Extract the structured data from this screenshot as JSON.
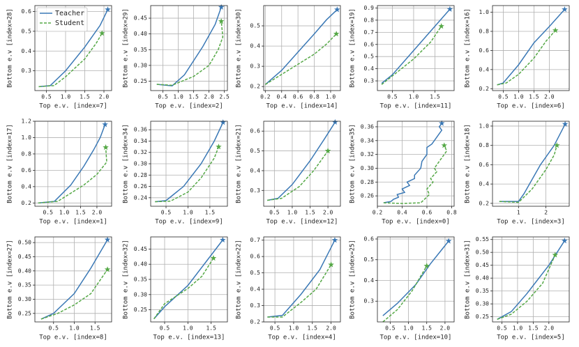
{
  "chart_data": [
    {
      "type": "line",
      "xlabel": "Top e.v. [index=7]",
      "ylabel": "Bottom e.v [index=28]",
      "xlim": [
        0.2,
        2.2
      ],
      "ylim": [
        0.2,
        0.63
      ],
      "xticks": [
        0.5,
        {
          "value": 1,
          "label": "1.0"
        },
        1.5,
        {
          "value": 2,
          "label": "2.0"
        }
      ],
      "yticks": [
        0.3,
        0.4,
        0.5,
        0.6
      ],
      "grid": true,
      "legend": "upper left",
      "end_marker": "star",
      "series": [
        {
          "name": "Teacher",
          "color": "#3a78b5",
          "x": [
            0.3,
            0.6,
            1.0,
            1.5,
            1.9,
            2.1
          ],
          "values": [
            0.22,
            0.225,
            0.3,
            0.42,
            0.53,
            0.61
          ]
        },
        {
          "name": "Student",
          "color": "#55a846",
          "x": [
            0.3,
            0.7,
            1.0,
            1.5,
            1.8,
            1.95
          ],
          "values": [
            0.22,
            0.225,
            0.27,
            0.36,
            0.44,
            0.49
          ]
        }
      ]
    },
    {
      "type": "line",
      "xlabel": "Top e.v. [index=2]",
      "ylabel": "Bottom e.v [index=29]",
      "xlim": [
        0.1,
        2.6
      ],
      "ylim": [
        0.22,
        0.49
      ],
      "xticks": [
        0.5,
        {
          "value": 1,
          "label": "1.0"
        },
        1.5,
        {
          "value": 2,
          "label": "2.0"
        },
        2.5
      ],
      "yticks": [
        0.25,
        {
          "value": 0.3,
          "label": "0.30"
        },
        0.35,
        {
          "value": 0.4,
          "label": "0.40"
        },
        0.45
      ],
      "grid": true,
      "end_marker": "star",
      "series": [
        {
          "color": "#3a78b5",
          "x": [
            0.3,
            0.8,
            1.2,
            1.8,
            2.2,
            2.4
          ],
          "values": [
            0.24,
            0.235,
            0.27,
            0.36,
            0.43,
            0.485
          ]
        },
        {
          "color": "#55a846",
          "x": [
            0.3,
            0.8,
            1.5,
            2.0,
            2.3,
            2.45,
            2.4
          ],
          "values": [
            0.24,
            0.237,
            0.265,
            0.3,
            0.35,
            0.39,
            0.44
          ]
        }
      ]
    },
    {
      "type": "line",
      "xlabel": "Top e.v. [index=14]",
      "ylabel": "Bottom e.v [index=30]",
      "xlim": [
        0.18,
        1.12
      ],
      "ylim": [
        0.18,
        0.6
      ],
      "xticks": [
        0.2,
        0.4,
        0.6,
        0.8,
        {
          "value": 1,
          "label": "1.0"
        }
      ],
      "yticks": [
        0.2,
        0.3,
        0.4,
        0.5
      ],
      "grid": true,
      "end_marker": "star",
      "series": [
        {
          "color": "#3a78b5",
          "x": [
            0.2,
            0.4,
            0.6,
            0.8,
            0.95,
            1.08
          ],
          "values": [
            0.21,
            0.28,
            0.37,
            0.46,
            0.53,
            0.58
          ]
        },
        {
          "color": "#55a846",
          "x": [
            0.2,
            0.4,
            0.6,
            0.8,
            0.95,
            1.07
          ],
          "values": [
            0.21,
            0.26,
            0.31,
            0.36,
            0.41,
            0.46
          ]
        }
      ]
    },
    {
      "type": "line",
      "xlabel": "Top e.v. [index=11]",
      "ylabel": "Bottom e.v [index=19]",
      "xlim": [
        0.15,
        1.95
      ],
      "ylim": [
        0.22,
        0.92
      ],
      "xticks": [
        0.5,
        {
          "value": 1,
          "label": "1.0"
        },
        1.5
      ],
      "yticks": [
        0.3,
        0.4,
        0.5,
        0.6,
        0.7,
        0.8,
        0.9
      ],
      "grid": true,
      "end_marker": "star",
      "series": [
        {
          "color": "#3a78b5",
          "x": [
            0.25,
            0.5,
            1.0,
            1.5,
            1.85
          ],
          "values": [
            0.28,
            0.35,
            0.55,
            0.75,
            0.89
          ]
        },
        {
          "color": "#55a846",
          "x": [
            0.25,
            0.5,
            1.0,
            1.4,
            1.65
          ],
          "values": [
            0.27,
            0.34,
            0.48,
            0.62,
            0.75
          ]
        }
      ]
    },
    {
      "type": "line",
      "xlabel": "Top e.v. [index=6]",
      "ylabel": "Bottom e.v [index=16]",
      "xlim": [
        0.15,
        2.65
      ],
      "ylim": [
        0.18,
        1.07
      ],
      "xticks": [
        0.5,
        {
          "value": 1,
          "label": "1.0"
        },
        1.5,
        {
          "value": 2,
          "label": "2.0"
        }
      ],
      "yticks": [
        0.2,
        0.4,
        0.6,
        0.8,
        {
          "value": 1,
          "label": "1.0"
        }
      ],
      "grid": true,
      "end_marker": "star",
      "series": [
        {
          "color": "#3a78b5",
          "x": [
            0.3,
            0.5,
            1.0,
            1.5,
            2.0,
            2.5
          ],
          "values": [
            0.24,
            0.26,
            0.45,
            0.68,
            0.85,
            1.03
          ]
        },
        {
          "color": "#55a846",
          "x": [
            0.3,
            0.6,
            1.0,
            1.5,
            1.9,
            2.2
          ],
          "values": [
            0.24,
            0.26,
            0.35,
            0.52,
            0.7,
            0.81
          ]
        }
      ]
    },
    {
      "type": "line",
      "xlabel": "Top e.v. [index=1]",
      "ylabel": "Bottom e.v [index=17]",
      "xlim": [
        0.1,
        2.45
      ],
      "ylim": [
        0.16,
        1.2
      ],
      "xticks": [
        0.5,
        {
          "value": 1,
          "label": "1.0"
        },
        1.5,
        {
          "value": 2,
          "label": "2.0"
        }
      ],
      "yticks": [
        0.2,
        0.4,
        0.6,
        0.8,
        {
          "value": 1,
          "label": "1.0"
        },
        1.2
      ],
      "grid": true,
      "end_marker": "star",
      "series": [
        {
          "color": "#3a78b5",
          "x": [
            0.2,
            0.7,
            1.2,
            1.6,
            1.9,
            2.1,
            2.25
          ],
          "values": [
            0.2,
            0.22,
            0.42,
            0.65,
            0.85,
            1.0,
            1.16
          ]
        },
        {
          "color": "#55a846",
          "x": [
            0.2,
            0.8,
            1.2,
            1.6,
            2.0,
            2.3,
            2.27
          ],
          "values": [
            0.2,
            0.22,
            0.32,
            0.42,
            0.55,
            0.7,
            0.88
          ]
        }
      ]
    },
    {
      "type": "line",
      "xlabel": "Top e.v. [index=9]",
      "ylabel": "Bottom e.v [index=34]",
      "xlim": [
        0.15,
        1.9
      ],
      "ylim": [
        0.225,
        0.375
      ],
      "xticks": [
        0.5,
        {
          "value": 1,
          "label": "1.0"
        },
        1.5
      ],
      "yticks": [
        0.24,
        0.26,
        0.28,
        {
          "value": 0.3,
          "label": "0.30"
        },
        0.32,
        0.34,
        0.36
      ],
      "grid": true,
      "end_marker": "star",
      "series": [
        {
          "color": "#3a78b5",
          "x": [
            0.25,
            0.5,
            0.9,
            1.3,
            1.6,
            1.8
          ],
          "values": [
            0.233,
            0.235,
            0.26,
            0.3,
            0.34,
            0.373
          ]
        },
        {
          "color": "#55a846",
          "x": [
            0.25,
            0.6,
            1.0,
            1.3,
            1.6,
            1.7
          ],
          "values": [
            0.233,
            0.234,
            0.25,
            0.275,
            0.31,
            0.33
          ]
        }
      ]
    },
    {
      "type": "line",
      "xlabel": "Top e.v. [index=12]",
      "ylabel": "Bottom e.v [index=21]",
      "xlim": [
        0.2,
        2.35
      ],
      "ylim": [
        0.22,
        0.65
      ],
      "xticks": [
        0.5,
        {
          "value": 1,
          "label": "1.0"
        },
        1.5,
        {
          "value": 2,
          "label": "2.0"
        }
      ],
      "yticks": [
        0.3,
        0.4,
        0.5,
        0.6
      ],
      "grid": true,
      "end_marker": "star",
      "series": [
        {
          "color": "#3a78b5",
          "x": [
            0.3,
            0.6,
            1.0,
            1.5,
            1.9,
            2.2
          ],
          "values": [
            0.25,
            0.26,
            0.33,
            0.45,
            0.56,
            0.645
          ]
        },
        {
          "color": "#55a846",
          "x": [
            0.3,
            0.7,
            1.2,
            1.6,
            2.0
          ],
          "values": [
            0.25,
            0.26,
            0.32,
            0.4,
            0.5
          ]
        }
      ]
    },
    {
      "type": "line",
      "xlabel": "Top e.v. [index=0]",
      "ylabel": "Bottom e.v [index=35]",
      "xlim": [
        0.2,
        0.82
      ],
      "ylim": [
        0.245,
        0.368
      ],
      "xticks": [
        0.2,
        0.4,
        0.6,
        0.8
      ],
      "yticks": [
        0.26,
        0.28,
        {
          "value": 0.3,
          "label": "0.30"
        },
        0.32,
        0.34,
        0.36
      ],
      "grid": true,
      "end_marker": "star",
      "series": [
        {
          "color": "#3a78b5",
          "x": [
            0.25,
            0.31,
            0.33,
            0.37,
            0.36,
            0.42,
            0.4,
            0.46,
            0.44,
            0.5,
            0.5,
            0.55,
            0.56,
            0.6,
            0.6,
            0.64,
            0.66,
            0.68,
            0.7,
            0.72,
            0.7,
            0.72
          ],
          "values": [
            0.25,
            0.252,
            0.255,
            0.258,
            0.262,
            0.265,
            0.27,
            0.275,
            0.28,
            0.285,
            0.29,
            0.3,
            0.31,
            0.32,
            0.33,
            0.335,
            0.34,
            0.345,
            0.35,
            0.355,
            0.36,
            0.365
          ]
        },
        {
          "color": "#55a846",
          "x": [
            0.25,
            0.4,
            0.55,
            0.58,
            0.62,
            0.6,
            0.65,
            0.63,
            0.68,
            0.66,
            0.7,
            0.74,
            0.76,
            0.74
          ],
          "values": [
            0.25,
            0.249,
            0.25,
            0.255,
            0.262,
            0.27,
            0.28,
            0.285,
            0.295,
            0.3,
            0.31,
            0.32,
            0.325,
            0.333
          ]
        }
      ]
    },
    {
      "type": "line",
      "xlabel": "Top e.v. [index=3]",
      "ylabel": "Bottom e.v [index=18]",
      "xlim": [
        0.05,
        2.85
      ],
      "ylim": [
        0.17,
        1.05
      ],
      "xticks": [
        1,
        2
      ],
      "yticks": [
        0.2,
        0.4,
        0.6,
        0.8,
        {
          "value": 1,
          "label": "1.0"
        }
      ],
      "grid": true,
      "end_marker": "star",
      "series": [
        {
          "color": "#3a78b5",
          "x": [
            0.3,
            1.0,
            1.2,
            1.8,
            2.3,
            2.7
          ],
          "values": [
            0.22,
            0.22,
            0.3,
            0.6,
            0.8,
            1.02
          ]
        },
        {
          "color": "#55a846",
          "x": [
            0.3,
            1.0,
            1.5,
            2.0,
            2.3,
            2.4
          ],
          "values": [
            0.22,
            0.21,
            0.35,
            0.55,
            0.7,
            0.8
          ]
        }
      ]
    },
    {
      "type": "line",
      "xlabel": "Top e.v. [index=8]",
      "ylabel": "Bottom e.v [index=27]",
      "xlim": [
        0.05,
        1.9
      ],
      "ylim": [
        0.22,
        0.52
      ],
      "xticks": [
        0.5,
        {
          "value": 1,
          "label": "1.0"
        },
        1.5
      ],
      "yticks": [
        0.25,
        {
          "value": 0.3,
          "label": "0.30"
        },
        0.35,
        {
          "value": 0.4,
          "label": "0.40"
        },
        0.45,
        {
          "value": 0.5,
          "label": "0.50"
        }
      ],
      "grid": true,
      "end_marker": "star",
      "series": [
        {
          "color": "#3a78b5",
          "x": [
            0.2,
            0.5,
            1.0,
            1.4,
            1.8
          ],
          "values": [
            0.23,
            0.25,
            0.32,
            0.41,
            0.51
          ]
        },
        {
          "color": "#55a846",
          "x": [
            0.2,
            0.6,
            1.0,
            1.4,
            1.8
          ],
          "values": [
            0.23,
            0.25,
            0.28,
            0.32,
            0.405
          ]
        }
      ]
    },
    {
      "type": "line",
      "xlabel": "Top e.v. [index=13]",
      "ylabel": "Bottom e.v [index=32]",
      "xlim": [
        0.2,
        1.85
      ],
      "ylim": [
        0.21,
        0.49
      ],
      "xticks": [
        0.5,
        {
          "value": 1,
          "label": "1.0"
        },
        1.5
      ],
      "yticks": [
        0.25,
        {
          "value": 0.3,
          "label": "0.30"
        },
        0.35,
        {
          "value": 0.4,
          "label": "0.40"
        },
        0.45
      ],
      "grid": true,
      "end_marker": "star",
      "series": [
        {
          "color": "#3a78b5",
          "x": [
            0.27,
            0.5,
            1.0,
            1.4,
            1.75
          ],
          "values": [
            0.22,
            0.26,
            0.33,
            0.41,
            0.48
          ]
        },
        {
          "color": "#55a846",
          "x": [
            0.27,
            0.5,
            1.0,
            1.3,
            1.55
          ],
          "values": [
            0.22,
            0.27,
            0.32,
            0.36,
            0.42
          ]
        }
      ]
    },
    {
      "type": "line",
      "xlabel": "Top e.v. [index=4]",
      "ylabel": "Bottom e.v [index=22]",
      "xlim": [
        0.2,
        2.25
      ],
      "ylim": [
        0.2,
        0.72
      ],
      "xticks": [
        0.5,
        {
          "value": 1,
          "label": "1.0"
        },
        1.5,
        {
          "value": 2,
          "label": "2.0"
        }
      ],
      "yticks": [
        0.2,
        0.3,
        0.4,
        0.5,
        0.6,
        0.7
      ],
      "grid": true,
      "end_marker": "star",
      "series": [
        {
          "color": "#3a78b5",
          "x": [
            0.3,
            0.7,
            1.2,
            1.7,
            2.1
          ],
          "values": [
            0.23,
            0.24,
            0.37,
            0.52,
            0.7
          ]
        },
        {
          "color": "#55a846",
          "x": [
            0.3,
            0.7,
            1.2,
            1.6,
            2.0
          ],
          "values": [
            0.23,
            0.23,
            0.32,
            0.4,
            0.55
          ]
        }
      ]
    },
    {
      "type": "line",
      "xlabel": "Top e.v. [index=10]",
      "ylabel": "Bottom e.v [index=25]",
      "xlim": [
        0.15,
        2.25
      ],
      "ylim": [
        0.2,
        0.61
      ],
      "xticks": [
        0.5,
        {
          "value": 1,
          "label": "1.0"
        },
        1.5,
        {
          "value": 2,
          "label": "2.0"
        }
      ],
      "yticks": [
        0.3,
        0.4,
        0.5,
        0.6
      ],
      "grid": true,
      "end_marker": "star",
      "series": [
        {
          "color": "#3a78b5",
          "x": [
            0.3,
            0.7,
            1.2,
            1.6,
            2.1
          ],
          "values": [
            0.23,
            0.29,
            0.38,
            0.48,
            0.59
          ]
        },
        {
          "color": "#55a846",
          "x": [
            0.3,
            0.7,
            1.1,
            1.5
          ],
          "values": [
            0.2,
            0.26,
            0.35,
            0.47
          ]
        }
      ]
    },
    {
      "type": "line",
      "xlabel": "Top e.v. [index=5]",
      "ylabel": "Bottom e.v [index=31]",
      "xlim": [
        0.2,
        2.65
      ],
      "ylim": [
        0.23,
        0.56
      ],
      "xticks": [
        0.5,
        {
          "value": 1,
          "label": "1.0"
        },
        1.5,
        {
          "value": 2,
          "label": "2.0"
        }
      ],
      "yticks": [
        0.25,
        {
          "value": 0.3,
          "label": "0.30"
        },
        0.35,
        {
          "value": 0.4,
          "label": "0.40"
        },
        0.45,
        {
          "value": 0.5,
          "label": "0.50"
        },
        0.55
      ],
      "grid": true,
      "end_marker": "star",
      "series": [
        {
          "color": "#3a78b5",
          "x": [
            0.35,
            0.8,
            1.3,
            2.0,
            2.5
          ],
          "values": [
            0.24,
            0.27,
            0.34,
            0.45,
            0.545
          ]
        },
        {
          "color": "#55a846",
          "x": [
            0.35,
            0.8,
            1.3,
            1.8,
            2.2
          ],
          "values": [
            0.24,
            0.26,
            0.31,
            0.38,
            0.49
          ]
        }
      ]
    }
  ]
}
